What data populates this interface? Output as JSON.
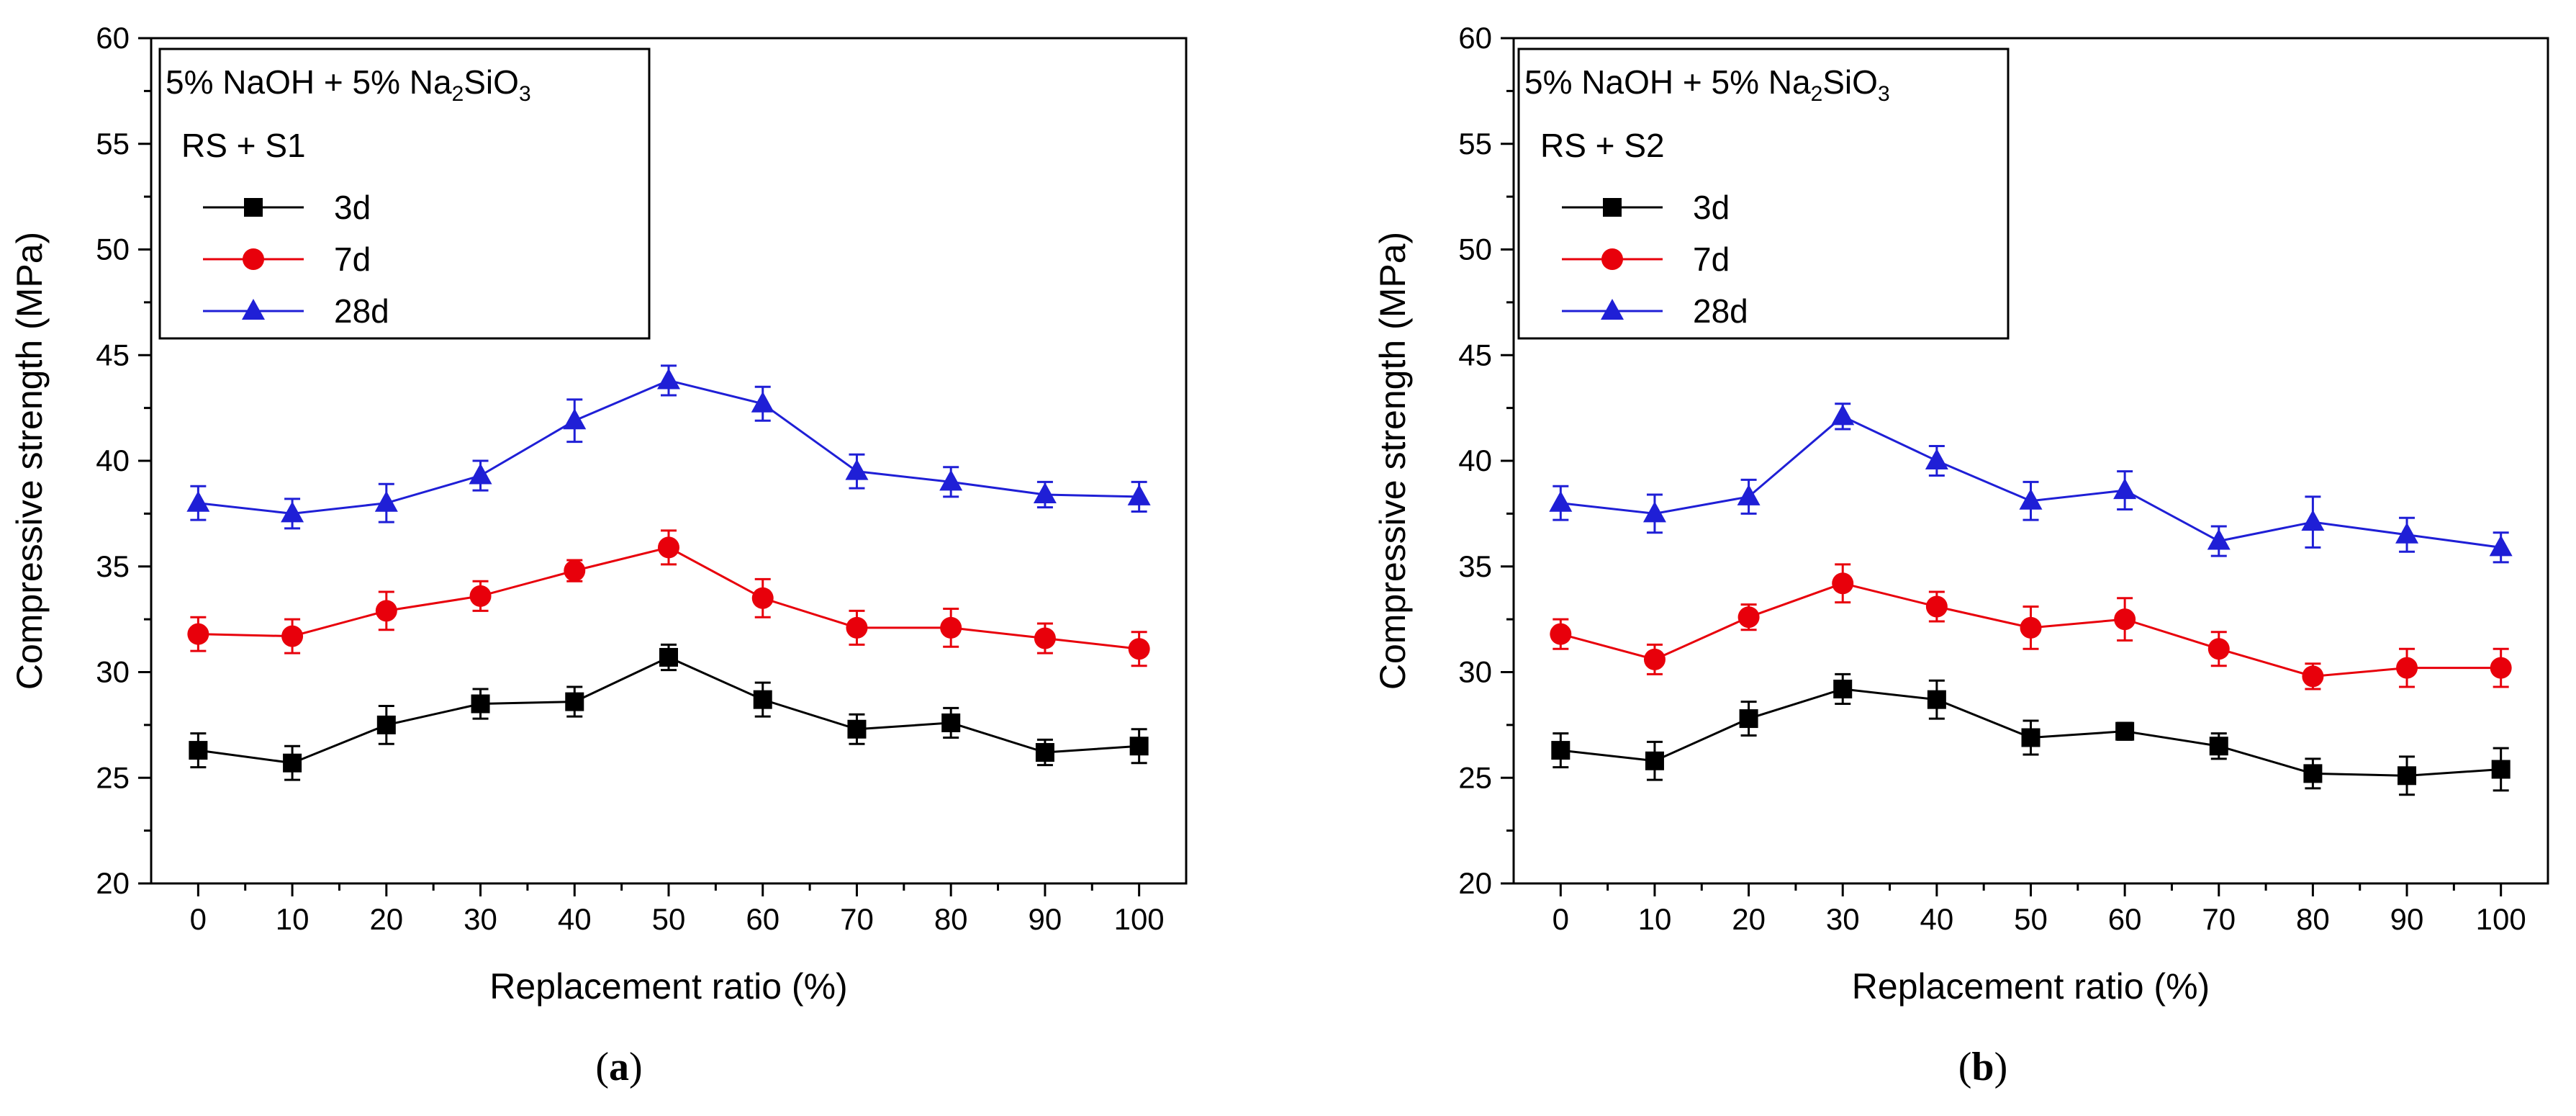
{
  "chart_data": [
    {
      "type": "line",
      "panel": "a",
      "caption": "a",
      "legend_title": "5% NaOH + 5% Na",
      "legend_title_sub1": "2",
      "legend_title_mid": "SiO",
      "legend_title_sub2": "3",
      "legend_subtitle": "RS + S1",
      "xlabel": "Replacement ratio (%)",
      "ylabel": "Compressive strength (MPa)",
      "xlim": [
        -5,
        105
      ],
      "ylim": [
        20,
        60
      ],
      "x": [
        0,
        10,
        20,
        30,
        40,
        50,
        60,
        70,
        80,
        90,
        100
      ],
      "xticks": [
        "0",
        "10",
        "20",
        "30",
        "40",
        "50",
        "60",
        "70",
        "80",
        "90",
        "100"
      ],
      "yticks": [
        "20",
        "25",
        "30",
        "35",
        "40",
        "45",
        "50",
        "55",
        "60"
      ],
      "series": [
        {
          "name": "3d",
          "color": "#000000",
          "marker": "square",
          "values": [
            26.3,
            25.7,
            27.5,
            28.5,
            28.6,
            30.7,
            28.7,
            27.3,
            27.6,
            26.2,
            26.5
          ],
          "errors": [
            0.8,
            0.8,
            0.9,
            0.7,
            0.7,
            0.6,
            0.8,
            0.7,
            0.7,
            0.6,
            0.8
          ]
        },
        {
          "name": "7d",
          "color": "#e8000b",
          "marker": "circle",
          "values": [
            31.8,
            31.7,
            32.9,
            33.6,
            34.8,
            35.9,
            33.5,
            32.1,
            32.1,
            31.6,
            31.1
          ],
          "errors": [
            0.8,
            0.8,
            0.9,
            0.7,
            0.5,
            0.8,
            0.9,
            0.8,
            0.9,
            0.7,
            0.8
          ]
        },
        {
          "name": "28d",
          "color": "#1f1fd6",
          "marker": "triangle",
          "values": [
            38.0,
            37.5,
            38.0,
            39.3,
            41.9,
            43.8,
            42.7,
            39.5,
            39.0,
            38.4,
            38.3
          ],
          "errors": [
            0.8,
            0.7,
            0.9,
            0.7,
            1.0,
            0.7,
            0.8,
            0.8,
            0.7,
            0.6,
            0.7
          ]
        }
      ]
    },
    {
      "type": "line",
      "panel": "b",
      "caption": "b",
      "legend_title": "5% NaOH + 5% Na",
      "legend_title_sub1": "2",
      "legend_title_mid": "SiO",
      "legend_title_sub2": "3",
      "legend_subtitle": "RS + S2",
      "xlabel": "Replacement ratio (%)",
      "ylabel": "Compressive strength (MPa)",
      "xlim": [
        -5,
        105
      ],
      "ylim": [
        20,
        60
      ],
      "x": [
        0,
        10,
        20,
        30,
        40,
        50,
        60,
        70,
        80,
        90,
        100
      ],
      "xticks": [
        "0",
        "10",
        "20",
        "30",
        "40",
        "50",
        "60",
        "70",
        "80",
        "90",
        "100"
      ],
      "yticks": [
        "20",
        "25",
        "30",
        "35",
        "40",
        "45",
        "50",
        "55",
        "60"
      ],
      "series": [
        {
          "name": "3d",
          "color": "#000000",
          "marker": "square",
          "values": [
            26.3,
            25.8,
            27.8,
            29.2,
            28.7,
            26.9,
            27.2,
            26.5,
            25.2,
            25.1,
            25.4
          ],
          "errors": [
            0.8,
            0.9,
            0.8,
            0.7,
            0.9,
            0.8,
            0.4,
            0.6,
            0.7,
            0.9,
            1.0
          ]
        },
        {
          "name": "7d",
          "color": "#e8000b",
          "marker": "circle",
          "values": [
            31.8,
            30.6,
            32.6,
            34.2,
            33.1,
            32.1,
            32.5,
            31.1,
            29.8,
            30.2,
            30.2
          ],
          "errors": [
            0.7,
            0.7,
            0.6,
            0.9,
            0.7,
            1.0,
            1.0,
            0.8,
            0.6,
            0.9,
            0.9
          ]
        },
        {
          "name": "28d",
          "color": "#1f1fd6",
          "marker": "triangle",
          "values": [
            38.0,
            37.5,
            38.3,
            42.1,
            40.0,
            38.1,
            38.6,
            36.2,
            37.1,
            36.5,
            35.9
          ],
          "errors": [
            0.8,
            0.9,
            0.8,
            0.6,
            0.7,
            0.9,
            0.9,
            0.7,
            1.2,
            0.8,
            0.7
          ]
        }
      ]
    }
  ]
}
